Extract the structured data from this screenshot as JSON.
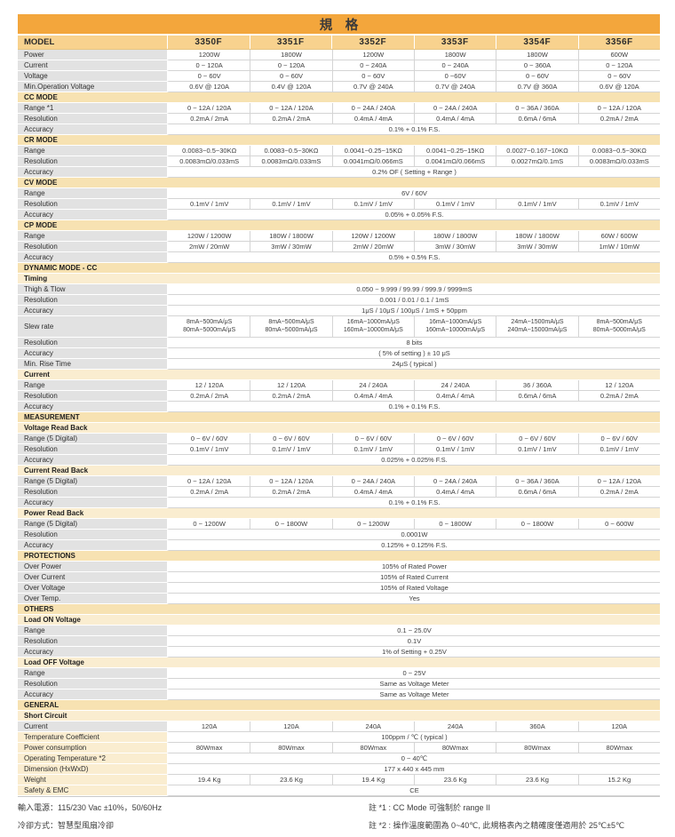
{
  "title": "規　格",
  "header": {
    "label": "MODEL",
    "models": [
      "3350F",
      "3351F",
      "3352F",
      "3353F",
      "3354F",
      "3356F"
    ]
  },
  "colors": {
    "title_bg": "#F3A63C",
    "model_bg": "#F8D28E",
    "section_bg": "#F7E2B2",
    "subsection_bg": "#FAEDD0",
    "label_bg": "#E2E2E2"
  },
  "rows": [
    {
      "type": "data",
      "label": "Power",
      "values": [
        "1200W",
        "1800W",
        "1200W",
        "1800W",
        "1800W",
        "600W"
      ]
    },
    {
      "type": "data",
      "label": "Current",
      "values": [
        "0 ~ 120A",
        "0 ~ 120A",
        "0 ~ 240A",
        "0 ~ 240A",
        "0 ~ 360A",
        "0 ~ 120A"
      ]
    },
    {
      "type": "data",
      "label": "Voltage",
      "values": [
        "0 ~ 60V",
        "0 ~ 60V",
        "0 ~ 60V",
        "0 ~60V",
        "0 ~ 60V",
        "0 ~ 60V"
      ]
    },
    {
      "type": "data",
      "label": "Min.Operation Voltage",
      "values": [
        "0.6V @ 120A",
        "0.4V @ 120A",
        "0.7V @ 240A",
        "0.7V @ 240A",
        "0.7V @ 360A",
        "0.6V @ 120A"
      ]
    },
    {
      "type": "section",
      "label": "CC MODE"
    },
    {
      "type": "data",
      "label": "Range *1",
      "values": [
        "0 ~ 12A / 120A",
        "0 ~ 12A / 120A",
        "0 ~ 24A / 240A",
        "0 ~ 24A / 240A",
        "0 ~ 36A / 360A",
        "0 ~ 12A / 120A"
      ]
    },
    {
      "type": "data",
      "label": "Resolution",
      "values": [
        "0.2mA / 2mA",
        "0.2mA / 2mA",
        "0.4mA / 4mA",
        "0.4mA / 4mA",
        "0.6mA / 6mA",
        "0.2mA / 2mA"
      ]
    },
    {
      "type": "span",
      "label": "Accuracy",
      "value": "0.1% + 0.1% F.S."
    },
    {
      "type": "section",
      "label": "CR MODE"
    },
    {
      "type": "data",
      "label": "Range",
      "values": [
        "0.0083~0.5~30KΩ",
        "0.0083~0.5~30KΩ",
        "0.0041~0.25~15KΩ",
        "0.0041~0.25~15KΩ",
        "0.0027~0.167~10KΩ",
        "0.0083~0.5~30KΩ"
      ]
    },
    {
      "type": "data",
      "label": "Resolution",
      "values": [
        "0.0083mΩ/0.033mS",
        "0.0083mΩ/0.033mS",
        "0.0041mΩ/0.066mS",
        "0.0041mΩ/0.066mS",
        "0.0027mΩ/0.1mS",
        "0.0083mΩ/0.033mS"
      ]
    },
    {
      "type": "span",
      "label": "Accuracy",
      "value": "0.2% OF ( Setting + Range )"
    },
    {
      "type": "section",
      "label": "CV MODE"
    },
    {
      "type": "span",
      "label": "Range",
      "value": "6V / 60V"
    },
    {
      "type": "data",
      "label": "Resolution",
      "values": [
        "0.1mV / 1mV",
        "0.1mV / 1mV",
        "0.1mV / 1mV",
        "0.1mV / 1mV",
        "0.1mV / 1mV",
        "0.1mV / 1mV"
      ]
    },
    {
      "type": "span",
      "label": "Accuracy",
      "value": "0.05% + 0.05% F.S."
    },
    {
      "type": "section",
      "label": "CP MODE"
    },
    {
      "type": "data",
      "label": "Range",
      "values": [
        "120W / 1200W",
        "180W / 1800W",
        "120W / 1200W",
        "180W / 1800W",
        "180W / 1800W",
        "60W / 600W"
      ]
    },
    {
      "type": "data",
      "label": "Resolution",
      "values": [
        "2mW / 20mW",
        "3mW / 30mW",
        "2mW / 20mW",
        "3mW / 30mW",
        "3mW / 30mW",
        "1mW / 10mW"
      ]
    },
    {
      "type": "span",
      "label": "Accuracy",
      "value": "0.5% + 0.5% F.S."
    },
    {
      "type": "section",
      "label": "DYNAMIC MODE - CC"
    },
    {
      "type": "subsection",
      "label": "Timing"
    },
    {
      "type": "span",
      "label": "Thigh & Tlow",
      "value": "0.050 ~ 9.999 / 99.99 / 999.9 / 9999mS"
    },
    {
      "type": "span",
      "label": "Resolution",
      "value": "0.001 / 0.01 / 0.1 / 1mS"
    },
    {
      "type": "span",
      "label": "Accuracy",
      "value": "1μS / 10μS / 100μS / 1mS + 50ppm"
    },
    {
      "type": "data2",
      "label": "Slew rate",
      "values": [
        [
          "8mA~500mA/μS",
          "80mA~5000mA/μS"
        ],
        [
          "8mA~500mA/μS",
          "80mA~5000mA/μS"
        ],
        [
          "16mA~1000mA/μS",
          "160mA~10000mA/μS"
        ],
        [
          "16mA~1000mA/μS",
          "160mA~10000mA/μS"
        ],
        [
          "24mA~1500mA/μS",
          "240mA~15000mA/μS"
        ],
        [
          "8mA~500mA/μS",
          "80mA~5000mA/μS"
        ]
      ]
    },
    {
      "type": "span",
      "label": "Resolution",
      "value": "8 bits"
    },
    {
      "type": "span",
      "label": "Accuracy",
      "value": "( 5% of setting ) ± 10 μS"
    },
    {
      "type": "span",
      "label": "Min. Rise Time",
      "value": "24μS ( typical )"
    },
    {
      "type": "subsection",
      "label": "Current"
    },
    {
      "type": "data",
      "label": "Range",
      "values": [
        "12 / 120A",
        "12 / 120A",
        "24 / 240A",
        "24 / 240A",
        "36 / 360A",
        "12 / 120A"
      ]
    },
    {
      "type": "data",
      "label": "Resolution",
      "values": [
        "0.2mA / 2mA",
        "0.2mA / 2mA",
        "0.4mA / 4mA",
        "0.4mA / 4mA",
        "0.6mA / 6mA",
        "0.2mA / 2mA"
      ]
    },
    {
      "type": "span",
      "label": "Accuracy",
      "value": "0.1% + 0.1% F.S."
    },
    {
      "type": "section",
      "label": "MEASUREMENT"
    },
    {
      "type": "subsection",
      "label": "Voltage Read Back"
    },
    {
      "type": "data",
      "label": "Range (5 Digital)",
      "values": [
        "0 ~ 6V / 60V",
        "0 ~ 6V / 60V",
        "0 ~ 6V / 60V",
        "0 ~ 6V / 60V",
        "0 ~ 6V / 60V",
        "0 ~ 6V / 60V"
      ]
    },
    {
      "type": "data",
      "label": "Resolution",
      "values": [
        "0.1mV / 1mV",
        "0.1mV / 1mV",
        "0.1mV / 1mV",
        "0.1mV / 1mV",
        "0.1mV / 1mV",
        "0.1mV / 1mV"
      ]
    },
    {
      "type": "span",
      "label": "Accuracy",
      "value": "0.025% + 0.025% F.S."
    },
    {
      "type": "subsection",
      "label": "Current Read Back"
    },
    {
      "type": "data",
      "label": "Range (5 Digital)",
      "values": [
        "0 ~ 12A / 120A",
        "0 ~ 12A / 120A",
        "0 ~ 24A / 240A",
        "0 ~ 24A / 240A",
        "0 ~ 36A / 360A",
        "0 ~ 12A / 120A"
      ]
    },
    {
      "type": "data",
      "label": "Resolution",
      "values": [
        "0.2mA / 2mA",
        "0.2mA / 2mA",
        "0.4mA / 4mA",
        "0.4mA / 4mA",
        "0.6mA / 6mA",
        "0.2mA / 2mA"
      ]
    },
    {
      "type": "span",
      "label": "Accuracy",
      "value": "0.1% + 0.1% F.S."
    },
    {
      "type": "subsection",
      "label": "Power Read Back"
    },
    {
      "type": "data",
      "label": "Range (5 Digital)",
      "values": [
        "0 ~ 1200W",
        "0 ~ 1800W",
        "0 ~ 1200W",
        "0 ~ 1800W",
        "0 ~ 1800W",
        "0 ~ 600W"
      ]
    },
    {
      "type": "span",
      "label": "Resolution",
      "value": "0.0001W"
    },
    {
      "type": "span",
      "label": "Accuracy",
      "value": "0.125% + 0.125%  F.S."
    },
    {
      "type": "section",
      "label": "PROTECTIONS"
    },
    {
      "type": "span",
      "label": "Over Power",
      "value": "105% of Rated Power"
    },
    {
      "type": "span",
      "label": "Over Current",
      "value": "105% of Rated Current"
    },
    {
      "type": "span",
      "label": "Over Voltage",
      "value": "105% of Rated Voltage"
    },
    {
      "type": "span",
      "label": "Over Temp.",
      "value": "Yes"
    },
    {
      "type": "section",
      "label": "OTHERS"
    },
    {
      "type": "subsection",
      "label": "Load ON Voltage"
    },
    {
      "type": "span",
      "label": "Range",
      "value": "0.1 ~ 25.0V"
    },
    {
      "type": "span",
      "label": "Resolution",
      "value": "0.1V"
    },
    {
      "type": "span",
      "label": "Accuracy",
      "value": "1% of Setting + 0.25V"
    },
    {
      "type": "subsection",
      "label": "Load OFF Voltage"
    },
    {
      "type": "span",
      "label": "Range",
      "value": "0 ~ 25V"
    },
    {
      "type": "span",
      "label": "Resolution",
      "value": "Same as Voltage Meter"
    },
    {
      "type": "span",
      "label": "Accuracy",
      "value": "Same as Voltage Meter"
    },
    {
      "type": "section",
      "label": "GENERAL"
    },
    {
      "type": "subsection",
      "label": "Short Circuit"
    },
    {
      "type": "data",
      "label": "Current",
      "values": [
        "120A",
        "120A",
        "240A",
        "240A",
        "360A",
        "120A"
      ]
    },
    {
      "type": "span",
      "label": "Temperature Coefficient",
      "value": "100ppm / ℃ ( typical )",
      "label_style": "cream"
    },
    {
      "type": "data",
      "label": "Power consumption",
      "values": [
        "80Wmax",
        "80Wmax",
        "80Wmax",
        "80Wmax",
        "80Wmax",
        "80Wmax"
      ],
      "label_style": "cream"
    },
    {
      "type": "span",
      "label": "Operating Temperature *2",
      "value": "0 ~ 40℃",
      "label_style": "cream"
    },
    {
      "type": "span",
      "label": "Dimension (HxWxD)",
      "value": "177 x 440 x 445 mm",
      "label_style": "cream"
    },
    {
      "type": "data",
      "label": "Weight",
      "values": [
        "19.4 Kg",
        "23.6 Kg",
        "19.4 Kg",
        "23.6 Kg",
        "23.6 Kg",
        "15.2 Kg"
      ],
      "label_style": "cream"
    },
    {
      "type": "span",
      "label": "Safety & EMC",
      "value": "CE",
      "label_style": "cream"
    }
  ],
  "footer": {
    "left": [
      "輸入電源：115/230 Vac ±10%，50/60Hz",
      "冷卻方式：智慧型風扇冷卻"
    ],
    "right": [
      "註 *1 : CC Mode 可強制於 range II",
      "註 *2 : 操作溫度範圍為 0~40℃, 此規格表內之精確度僅適用於 25℃±5℃"
    ]
  }
}
